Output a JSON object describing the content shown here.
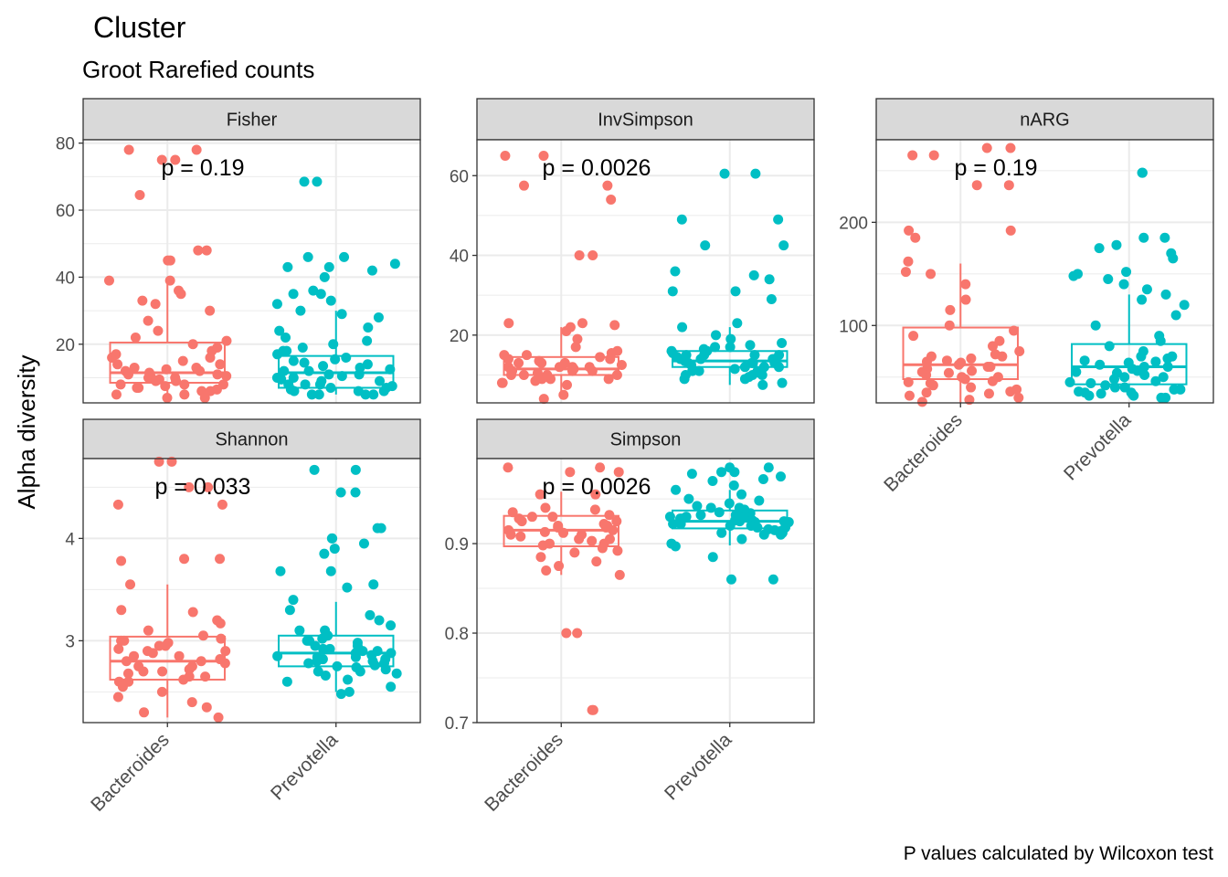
{
  "title": "Cluster",
  "subtitle": "Groot Rarefied counts",
  "ylabel": "Alpha diversity",
  "caption": "P values calculated by Wilcoxon test",
  "groups": [
    "Bacteroides",
    "Prevotella"
  ],
  "colors": {
    "Bacteroides": "#F8766D",
    "Prevotella": "#00BFC4",
    "strip_fill": "#D9D9D9",
    "grid": "#EBEBEB"
  },
  "chart_data": [
    {
      "type": "box+jitter",
      "panel": "Fisher",
      "p_value_label": "p = 0.19",
      "ylim": [
        2.5,
        81
      ],
      "yticks": [
        20,
        40,
        60,
        80
      ],
      "boxes": {
        "Bacteroides": {
          "min": 4,
          "q1": 8.5,
          "median": 11.5,
          "q3": 20.5,
          "max": 38
        },
        "Prevotella": {
          "min": 5,
          "q1": 7,
          "median": 11.5,
          "q3": 16.5,
          "max": 30
        }
      },
      "points": {
        "Bacteroides": [
          78,
          78,
          75,
          75,
          64.5,
          48,
          48,
          45,
          45,
          39,
          39,
          36,
          35,
          32,
          30,
          27,
          24,
          22,
          21,
          20,
          18,
          16,
          16,
          15,
          14,
          13,
          12,
          12,
          11,
          11,
          10,
          10,
          10,
          9,
          9,
          8,
          8,
          8,
          7,
          7,
          6,
          6,
          5,
          5,
          4,
          4,
          13,
          14,
          9.5,
          10.5,
          6.5,
          7.5,
          11.5,
          12.5,
          17,
          19,
          33
        ],
        "Prevotella": [
          68.5,
          68.5,
          46,
          46,
          44,
          43,
          43,
          42,
          40,
          36,
          35,
          35,
          33,
          32,
          30,
          29,
          28,
          25,
          24,
          22,
          21,
          20,
          19,
          18,
          18,
          17,
          16,
          15,
          14,
          13,
          12,
          12,
          11,
          11,
          10,
          10,
          9,
          9,
          8,
          8,
          8,
          7,
          7,
          6,
          6,
          6,
          5,
          5,
          5,
          5,
          13.5,
          14.5,
          9.5,
          10.5,
          7.5,
          6.5,
          15.5,
          12.5
        ]
      }
    },
    {
      "type": "box+jitter",
      "panel": "InvSimpson",
      "p_value_label": "p = 0.0026",
      "ylim": [
        3,
        69
      ],
      "yticks": [
        20,
        40,
        60
      ],
      "boxes": {
        "Bacteroides": {
          "min": 4,
          "q1": 10,
          "median": 11.5,
          "q3": 14.5,
          "max": 22
        },
        "Prevotella": {
          "min": 7.5,
          "q1": 12,
          "median": 13.5,
          "q3": 16,
          "max": 22
        }
      },
      "points": {
        "Bacteroides": [
          65,
          65,
          57.5,
          57.5,
          54,
          40,
          40,
          23,
          23,
          22.5,
          22,
          21,
          19,
          17,
          16,
          15.5,
          15,
          14.5,
          14,
          13.5,
          13,
          12.5,
          12,
          12,
          11.5,
          11,
          11,
          10.5,
          10,
          10,
          9.5,
          9,
          9,
          8.5,
          8,
          8,
          7.5,
          5,
          4,
          13,
          12,
          11,
          10,
          14,
          15,
          13,
          12,
          9,
          11,
          10
        ],
        "Prevotella": [
          60.5,
          60.5,
          49,
          49,
          42.5,
          42.5,
          36,
          35,
          34,
          31,
          31,
          29,
          23,
          22,
          20,
          19,
          18,
          17.5,
          17,
          16.5,
          16,
          15.5,
          15,
          15,
          14.5,
          14,
          14,
          13.5,
          13,
          13,
          12.5,
          12,
          12,
          11.5,
          11,
          11,
          10.5,
          10,
          10,
          9.5,
          9,
          9,
          8,
          7.5,
          15,
          14,
          13,
          12,
          16,
          17,
          13,
          14,
          15,
          12,
          11,
          10
        ]
      }
    },
    {
      "type": "box+jitter",
      "panel": "nARG",
      "p_value_label": "p = 0.19",
      "ylim": [
        25,
        280
      ],
      "yticks": [
        100,
        200
      ],
      "boxes": {
        "Bacteroides": {
          "min": 25,
          "q1": 48,
          "median": 62,
          "q3": 98,
          "max": 160
        },
        "Prevotella": {
          "min": 30,
          "q1": 43,
          "median": 60,
          "q3": 82,
          "max": 130
        }
      },
      "points": {
        "Bacteroides": [
          272,
          272,
          265,
          265,
          236,
          236,
          192,
          192,
          185,
          162,
          152,
          150,
          140,
          125,
          115,
          100,
          95,
          90,
          85,
          80,
          75,
          72,
          70,
          68,
          66,
          64,
          62,
          60,
          58,
          56,
          54,
          52,
          50,
          48,
          46,
          44,
          42,
          40,
          38,
          36,
          34,
          32,
          30,
          28,
          26,
          60,
          65,
          55,
          70,
          45,
          50,
          35
        ],
        "Prevotella": [
          248,
          248,
          185,
          185,
          178,
          175,
          170,
          165,
          152,
          150,
          148,
          145,
          140,
          135,
          130,
          125,
          120,
          110,
          100,
          90,
          85,
          80,
          75,
          70,
          68,
          66,
          64,
          62,
          60,
          58,
          56,
          54,
          52,
          50,
          48,
          46,
          44,
          42,
          40,
          38,
          36,
          34,
          32,
          30,
          30,
          32,
          35,
          40,
          45,
          50,
          55,
          60,
          65,
          70,
          35,
          38
        ]
      }
    },
    {
      "type": "box+jitter",
      "panel": "Shannon",
      "p_value_label": "p = 0.033",
      "ylim": [
        2.2,
        4.78
      ],
      "yticks": [
        3,
        4
      ],
      "boxes": {
        "Bacteroides": {
          "min": 2.25,
          "q1": 2.62,
          "median": 2.8,
          "q3": 3.04,
          "max": 3.55
        },
        "Prevotella": {
          "min": 2.5,
          "q1": 2.75,
          "median": 2.88,
          "q3": 3.05,
          "max": 3.38
        }
      },
      "points": {
        "Bacteroides": [
          4.75,
          4.75,
          4.5,
          4.5,
          4.33,
          4.33,
          3.8,
          3.8,
          3.78,
          3.55,
          3.3,
          3.28,
          3.2,
          3.17,
          3.1,
          3.05,
          3.02,
          3.0,
          2.98,
          2.95,
          2.92,
          2.9,
          2.88,
          2.85,
          2.82,
          2.8,
          2.78,
          2.75,
          2.72,
          2.7,
          2.68,
          2.65,
          2.62,
          2.6,
          2.55,
          2.5,
          2.45,
          2.4,
          2.35,
          2.3,
          2.25,
          2.7,
          2.8,
          2.9,
          2.6,
          3.0,
          2.75,
          2.85,
          2.65,
          2.95
        ],
        "Prevotella": [
          4.67,
          4.67,
          4.45,
          4.45,
          4.1,
          4.1,
          4.0,
          4.0,
          3.95,
          3.9,
          3.85,
          3.68,
          3.68,
          3.55,
          3.52,
          3.4,
          3.3,
          3.25,
          3.2,
          3.15,
          3.1,
          3.05,
          3.02,
          3.0,
          2.98,
          2.95,
          2.92,
          2.9,
          2.88,
          2.86,
          2.84,
          2.82,
          2.8,
          2.78,
          2.76,
          2.74,
          2.72,
          2.7,
          2.68,
          2.66,
          2.62,
          2.6,
          2.55,
          2.5,
          2.48,
          2.9,
          2.85,
          2.8,
          2.95,
          3.0,
          2.75,
          2.7,
          2.88,
          2.82,
          2.92,
          3.1,
          2.78,
          2.84
        ]
      }
    },
    {
      "type": "box+jitter",
      "panel": "Simpson",
      "p_value_label": "p = 0.0026",
      "ylim": [
        0.7,
        0.995
      ],
      "yticks": [
        0.7,
        0.8,
        0.9
      ],
      "boxes": {
        "Bacteroides": {
          "min": 0.865,
          "q1": 0.897,
          "median": 0.915,
          "q3": 0.931,
          "max": 0.958
        },
        "Prevotella": {
          "min": 0.898,
          "q1": 0.917,
          "median": 0.925,
          "q3": 0.937,
          "max": 0.96
        }
      },
      "points": {
        "Bacteroides": [
          0.985,
          0.985,
          0.98,
          0.98,
          0.955,
          0.955,
          0.94,
          0.938,
          0.935,
          0.932,
          0.93,
          0.928,
          0.925,
          0.922,
          0.92,
          0.918,
          0.915,
          0.913,
          0.91,
          0.908,
          0.905,
          0.903,
          0.9,
          0.898,
          0.895,
          0.892,
          0.89,
          0.885,
          0.88,
          0.875,
          0.87,
          0.865,
          0.8,
          0.8,
          0.714,
          0.714,
          0.92,
          0.91,
          0.915,
          0.905,
          0.925,
          0.93,
          0.9,
          0.912,
          0.918
        ],
        "Prevotella": [
          0.985,
          0.985,
          0.98,
          0.98,
          0.978,
          0.975,
          0.972,
          0.97,
          0.965,
          0.96,
          0.955,
          0.95,
          0.948,
          0.945,
          0.942,
          0.94,
          0.938,
          0.936,
          0.934,
          0.932,
          0.93,
          0.928,
          0.926,
          0.924,
          0.922,
          0.92,
          0.918,
          0.916,
          0.914,
          0.912,
          0.91,
          0.905,
          0.9,
          0.897,
          0.885,
          0.86,
          0.86,
          0.925,
          0.93,
          0.92,
          0.935,
          0.915,
          0.928,
          0.922,
          0.918,
          0.932,
          0.926,
          0.924,
          0.94,
          0.912,
          0.91,
          0.93,
          0.925
        ]
      }
    }
  ]
}
